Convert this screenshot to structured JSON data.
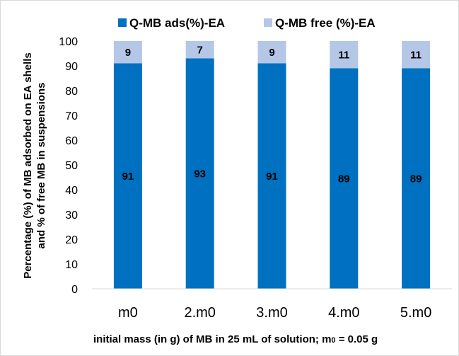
{
  "chart_data": {
    "type": "bar",
    "stacked": true,
    "categories": [
      "m0",
      "2.m0",
      "3.m0",
      "4.m0",
      "5.m0"
    ],
    "series": [
      {
        "name": "Q-MB ads(%)-EA",
        "values": [
          91,
          93,
          91,
          89,
          89
        ],
        "color": "#0070c0"
      },
      {
        "name": "Q-MB free (%)-EA",
        "values": [
          9,
          7,
          9,
          11,
          11
        ],
        "color": "#b4c7e7"
      }
    ],
    "ylim": [
      0,
      100
    ],
    "yticks": [
      0,
      10,
      20,
      30,
      40,
      50,
      60,
      70,
      80,
      90,
      100
    ],
    "ylabel_line1": "Percentage (%) of MB adsorbed on EA shells",
    "ylabel_line2": "and % of free MB in suspensions",
    "xlabel_main": "initial mass (in g) of MB in 25 mL of solution; m",
    "xlabel_sub": "0",
    "xlabel_tail": " = 0.05 g",
    "legend_position": "top",
    "grid": false
  }
}
